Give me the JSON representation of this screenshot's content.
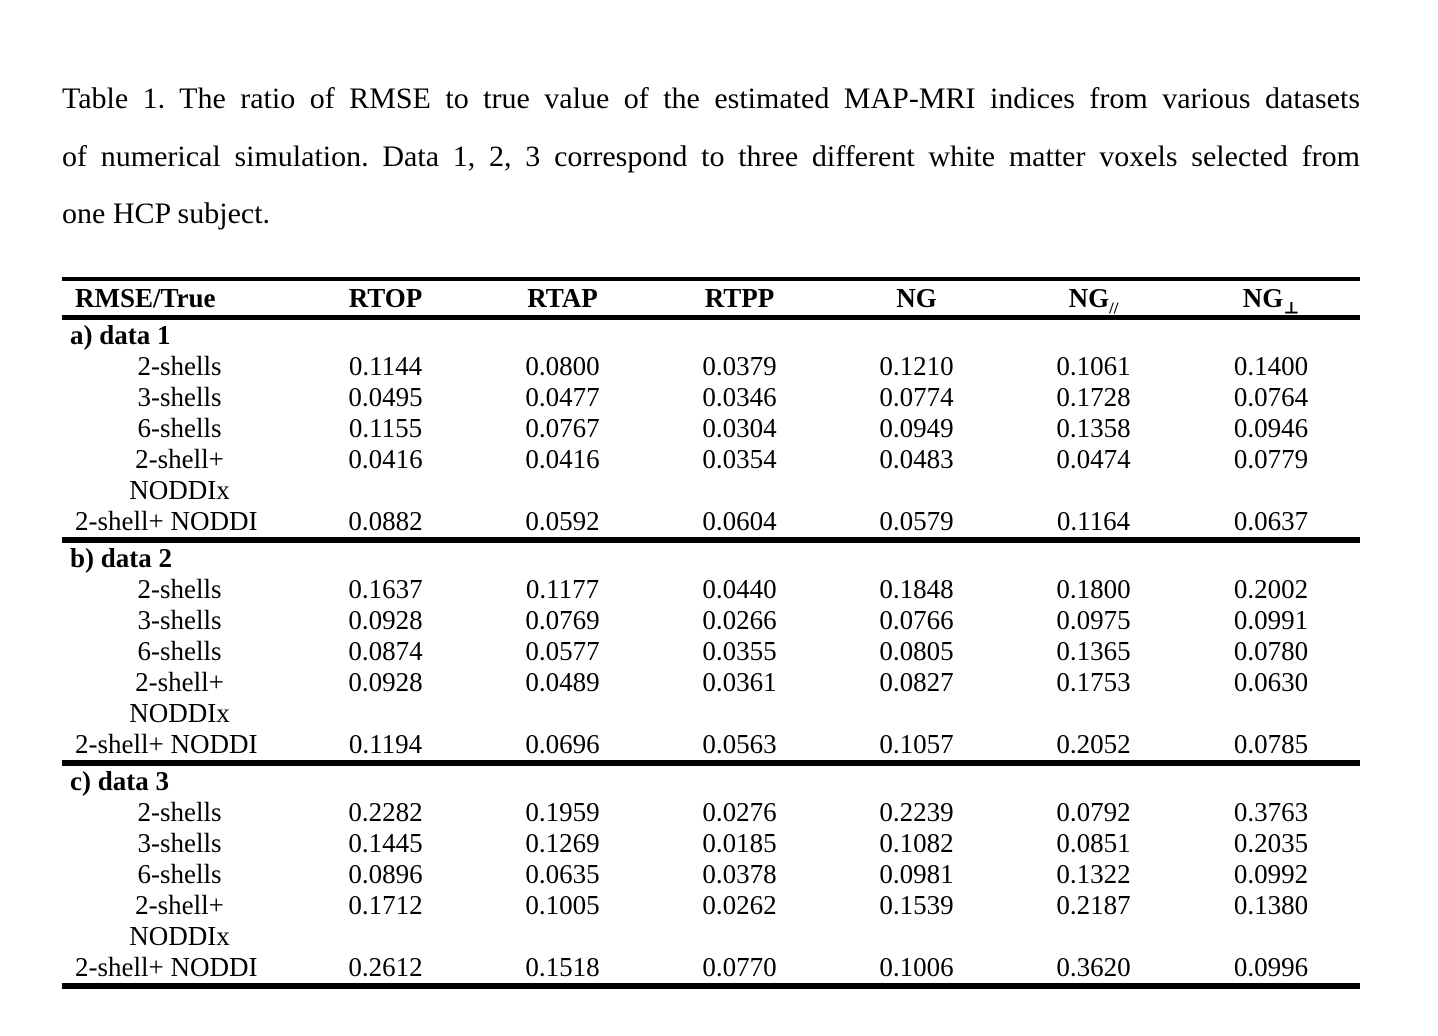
{
  "page": {
    "background_color": "#ffffff",
    "text_color": "#000000"
  },
  "caption": {
    "lines": [
      "Table 1. The ratio of RMSE to true value of the estimated MAP-MRI indices from various datasets",
      "of numerical simulation. Data 1, 2, 3 correspond to three different white matter voxels selected from",
      "one HCP subject."
    ]
  },
  "table": {
    "headers": [
      {
        "base": "RMSE/True",
        "sub": ""
      },
      {
        "base": "RTOP",
        "sub": ""
      },
      {
        "base": "RTAP",
        "sub": ""
      },
      {
        "base": "RTPP",
        "sub": ""
      },
      {
        "base": "NG",
        "sub": ""
      },
      {
        "base": "NG",
        "sub": "//"
      },
      {
        "base": "NG",
        "sub": "⊥"
      }
    ],
    "sections": [
      {
        "title": "a) data 1",
        "rows": [
          {
            "label": "2-shells",
            "align": "center",
            "values": [
              "0.1144",
              "0.0800",
              "0.0379",
              "0.1210",
              "0.1061",
              "0.1400"
            ]
          },
          {
            "label": "3-shells",
            "align": "center",
            "values": [
              "0.0495",
              "0.0477",
              "0.0346",
              "0.0774",
              "0.1728",
              "0.0764"
            ]
          },
          {
            "label": "6-shells",
            "align": "center",
            "values": [
              "0.1155",
              "0.0767",
              "0.0304",
              "0.0949",
              "0.1358",
              "0.0946"
            ]
          },
          {
            "label": "2-shell+",
            "align": "center",
            "values": [
              "0.0416",
              "0.0416",
              "0.0354",
              "0.0483",
              "0.0474",
              "0.0779"
            ]
          },
          {
            "label": "NODDIx",
            "align": "center",
            "values": [
              "",
              "",
              "",
              "",
              "",
              ""
            ]
          },
          {
            "label": "2-shell+ NODDI",
            "align": "left",
            "values": [
              "0.0882",
              "0.0592",
              "0.0604",
              "0.0579",
              "0.1164",
              "0.0637"
            ]
          }
        ]
      },
      {
        "title": "b) data 2",
        "rows": [
          {
            "label": "2-shells",
            "align": "center",
            "values": [
              "0.1637",
              "0.1177",
              "0.0440",
              "0.1848",
              "0.1800",
              "0.2002"
            ]
          },
          {
            "label": "3-shells",
            "align": "center",
            "values": [
              "0.0928",
              "0.0769",
              "0.0266",
              "0.0766",
              "0.0975",
              "0.0991"
            ]
          },
          {
            "label": "6-shells",
            "align": "center",
            "values": [
              "0.0874",
              "0.0577",
              "0.0355",
              "0.0805",
              "0.1365",
              "0.0780"
            ]
          },
          {
            "label": "2-shell+",
            "align": "center",
            "values": [
              "0.0928",
              "0.0489",
              "0.0361",
              "0.0827",
              "0.1753",
              "0.0630"
            ]
          },
          {
            "label": "NODDIx",
            "align": "center",
            "values": [
              "",
              "",
              "",
              "",
              "",
              ""
            ]
          },
          {
            "label": "2-shell+ NODDI",
            "align": "left",
            "values": [
              "0.1194",
              "0.0696",
              "0.0563",
              "0.1057",
              "0.2052",
              "0.0785"
            ]
          }
        ]
      },
      {
        "title": "c) data 3",
        "rows": [
          {
            "label": "2-shells",
            "align": "center",
            "values": [
              "0.2282",
              "0.1959",
              "0.0276",
              "0.2239",
              "0.0792",
              "0.3763"
            ]
          },
          {
            "label": "3-shells",
            "align": "center",
            "values": [
              "0.1445",
              "0.1269",
              "0.0185",
              "0.1082",
              "0.0851",
              "0.2035"
            ]
          },
          {
            "label": "6-shells",
            "align": "center",
            "values": [
              "0.0896",
              "0.0635",
              "0.0378",
              "0.0981",
              "0.1322",
              "0.0992"
            ]
          },
          {
            "label": "2-shell+",
            "align": "center",
            "values": [
              "0.1712",
              "0.1005",
              "0.0262",
              "0.1539",
              "0.2187",
              "0.1380"
            ]
          },
          {
            "label": "NODDIx",
            "align": "center",
            "values": [
              "",
              "",
              "",
              "",
              "",
              ""
            ]
          },
          {
            "label": "2-shell+ NODDI",
            "align": "left",
            "values": [
              "0.2612",
              "0.1518",
              "0.0770",
              "0.1006",
              "0.3620",
              "0.0996"
            ]
          }
        ]
      }
    ]
  }
}
